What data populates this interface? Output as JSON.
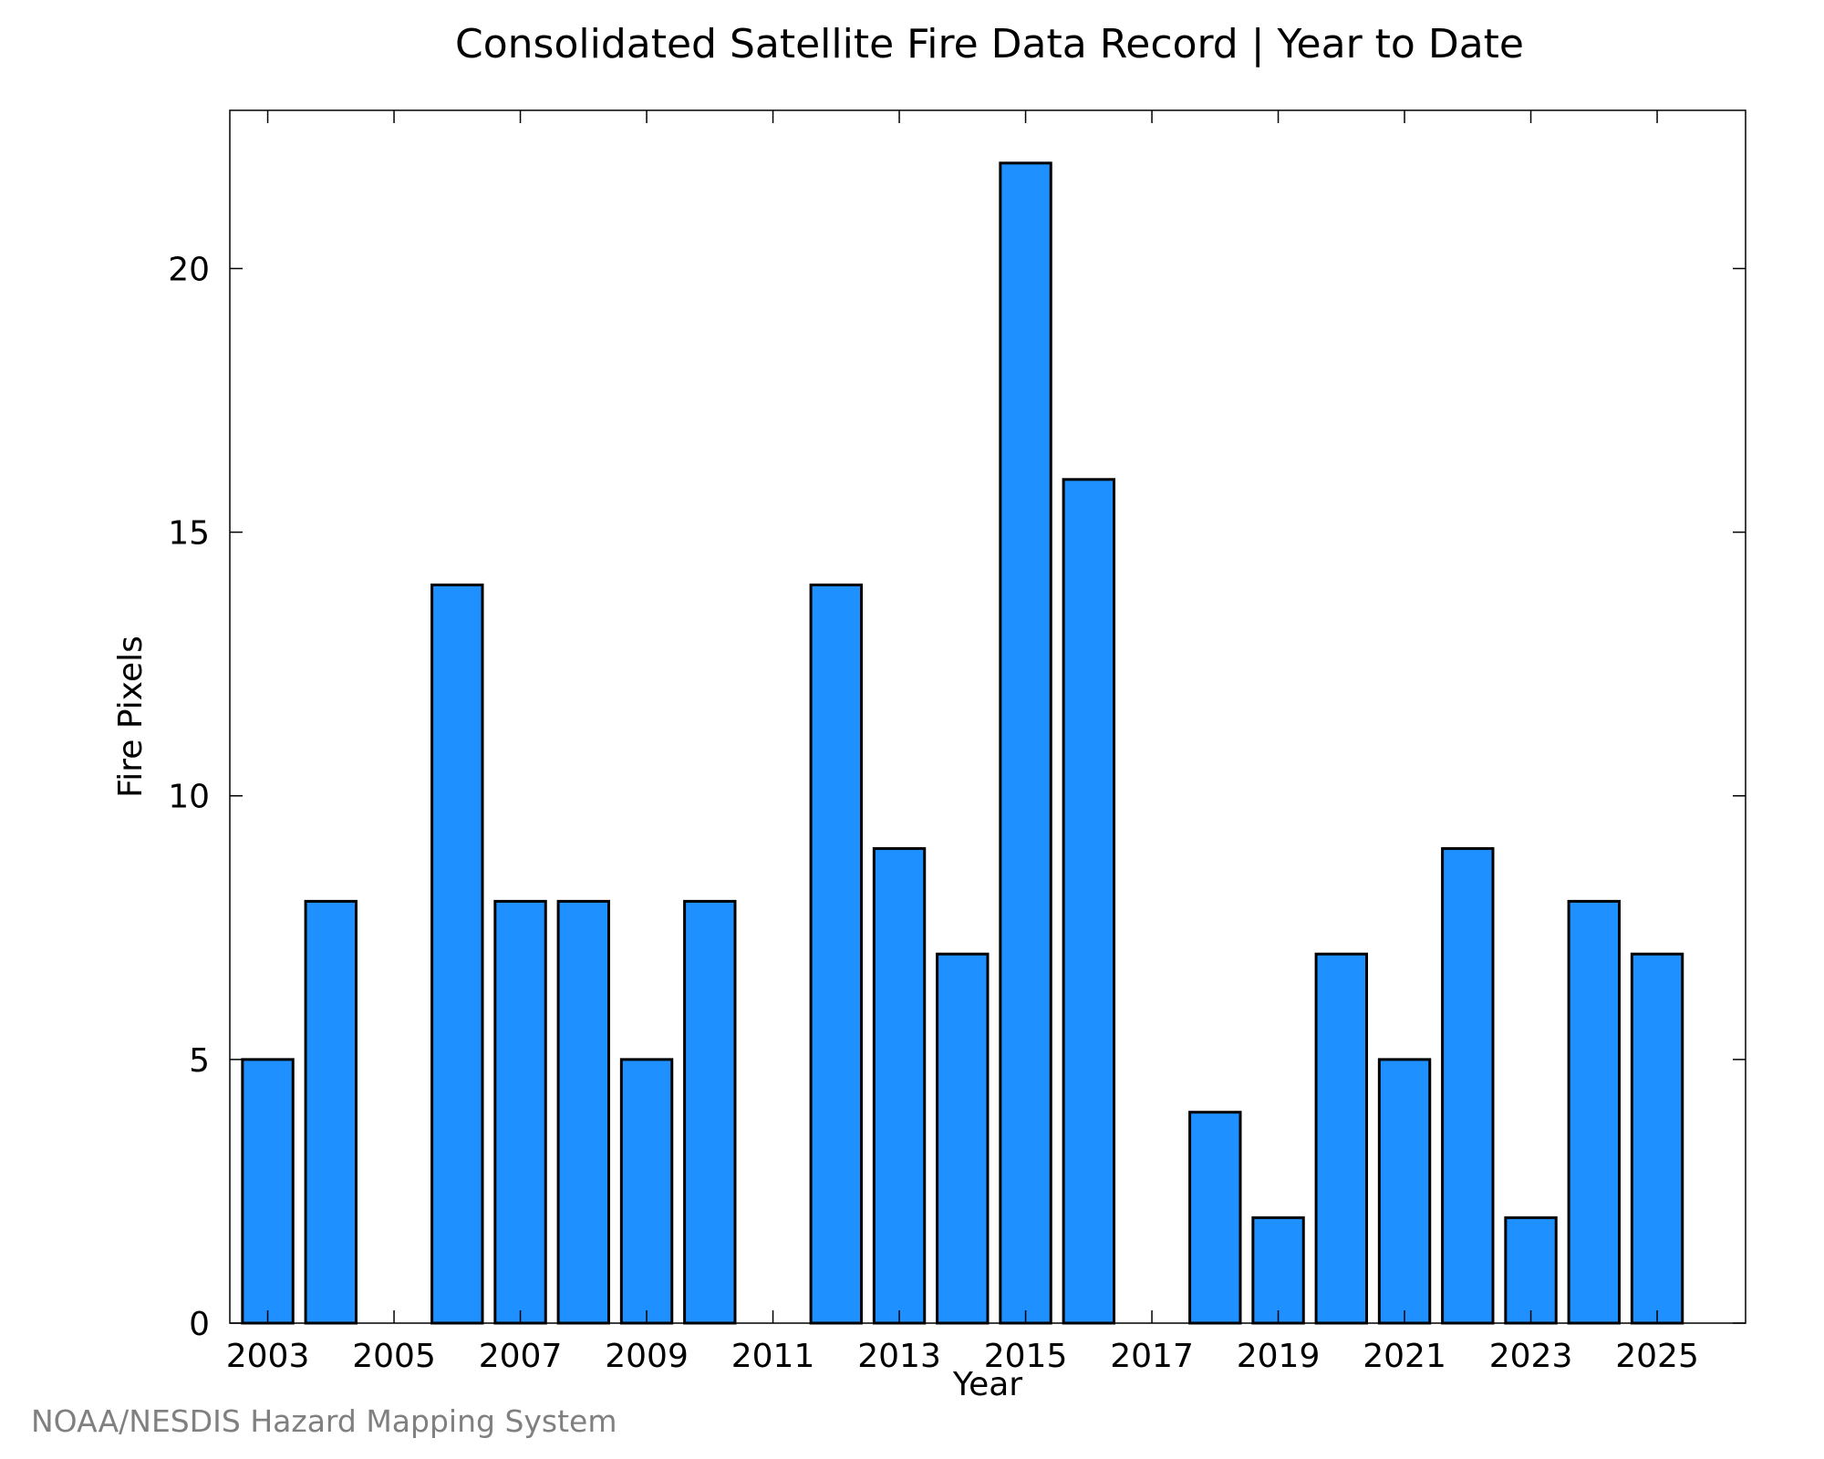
{
  "chart_data": {
    "type": "bar",
    "title": "Consolidated Satellite Fire Data Record | Year to Date",
    "xlabel": "Year",
    "ylabel": "Fire Pixels",
    "categories": [
      "2003",
      "2004",
      "2005",
      "2006",
      "2007",
      "2008",
      "2009",
      "2010",
      "2011",
      "2012",
      "2013",
      "2014",
      "2015",
      "2016",
      "2017",
      "2018",
      "2019",
      "2020",
      "2021",
      "2022",
      "2023",
      "2024",
      "2025"
    ],
    "values": [
      5,
      8,
      0,
      14,
      8,
      8,
      5,
      8,
      0,
      14,
      9,
      7,
      22,
      16,
      0,
      4,
      2,
      7,
      5,
      9,
      2,
      8,
      7
    ],
    "x_tick_labels": [
      "2003",
      "2005",
      "2007",
      "2009",
      "2011",
      "2013",
      "2015",
      "2017",
      "2019",
      "2021",
      "2023",
      "2025"
    ],
    "y_ticks": [
      0,
      5,
      10,
      15,
      20
    ],
    "ylim": [
      0,
      23
    ],
    "xlim": [
      2002.4,
      2026.4
    ],
    "bar_color": "#1e90ff",
    "bar_edge_color": "#000000",
    "grid": false
  },
  "source_note": "NOAA/NESDIS Hazard Mapping System"
}
